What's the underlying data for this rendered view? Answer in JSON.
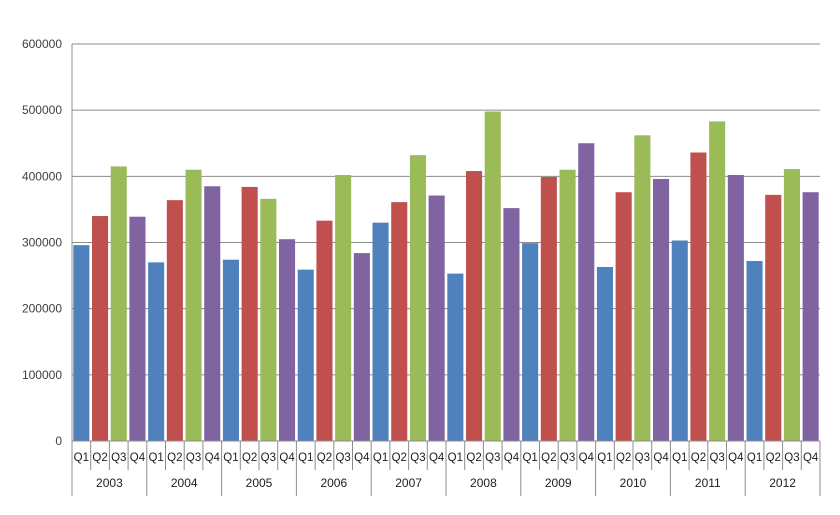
{
  "chart_data": {
    "type": "bar",
    "title": "",
    "xlabel": "",
    "ylabel": "",
    "ylim": [
      0,
      600000
    ],
    "yticks": [
      0,
      100000,
      200000,
      300000,
      400000,
      500000,
      600000
    ],
    "ytick_labels": [
      "0",
      "100000",
      "200000",
      "300000",
      "400000",
      "500000",
      "600000"
    ],
    "grid": true,
    "legend": "none",
    "years": [
      "2003",
      "2004",
      "2005",
      "2006",
      "2007",
      "2008",
      "2009",
      "2010",
      "2011",
      "2012"
    ],
    "quarters": [
      "Q1",
      "Q2",
      "Q3",
      "Q4"
    ],
    "colors": [
      "#4f81bd",
      "#c0504d",
      "#9bbb59",
      "#8064a2"
    ],
    "values": [
      [
        296000,
        340000,
        415000,
        339000
      ],
      [
        270000,
        364000,
        410000,
        385000
      ],
      [
        274000,
        384000,
        366000,
        305000
      ],
      [
        259000,
        333000,
        402000,
        284000
      ],
      [
        330000,
        361000,
        432000,
        371000
      ],
      [
        253000,
        408000,
        498000,
        352000
      ],
      [
        299000,
        399000,
        410000,
        450000
      ],
      [
        263000,
        376000,
        462000,
        396000
      ],
      [
        303000,
        436000,
        483000,
        402000
      ],
      [
        272000,
        372000,
        411000,
        376000
      ]
    ]
  }
}
